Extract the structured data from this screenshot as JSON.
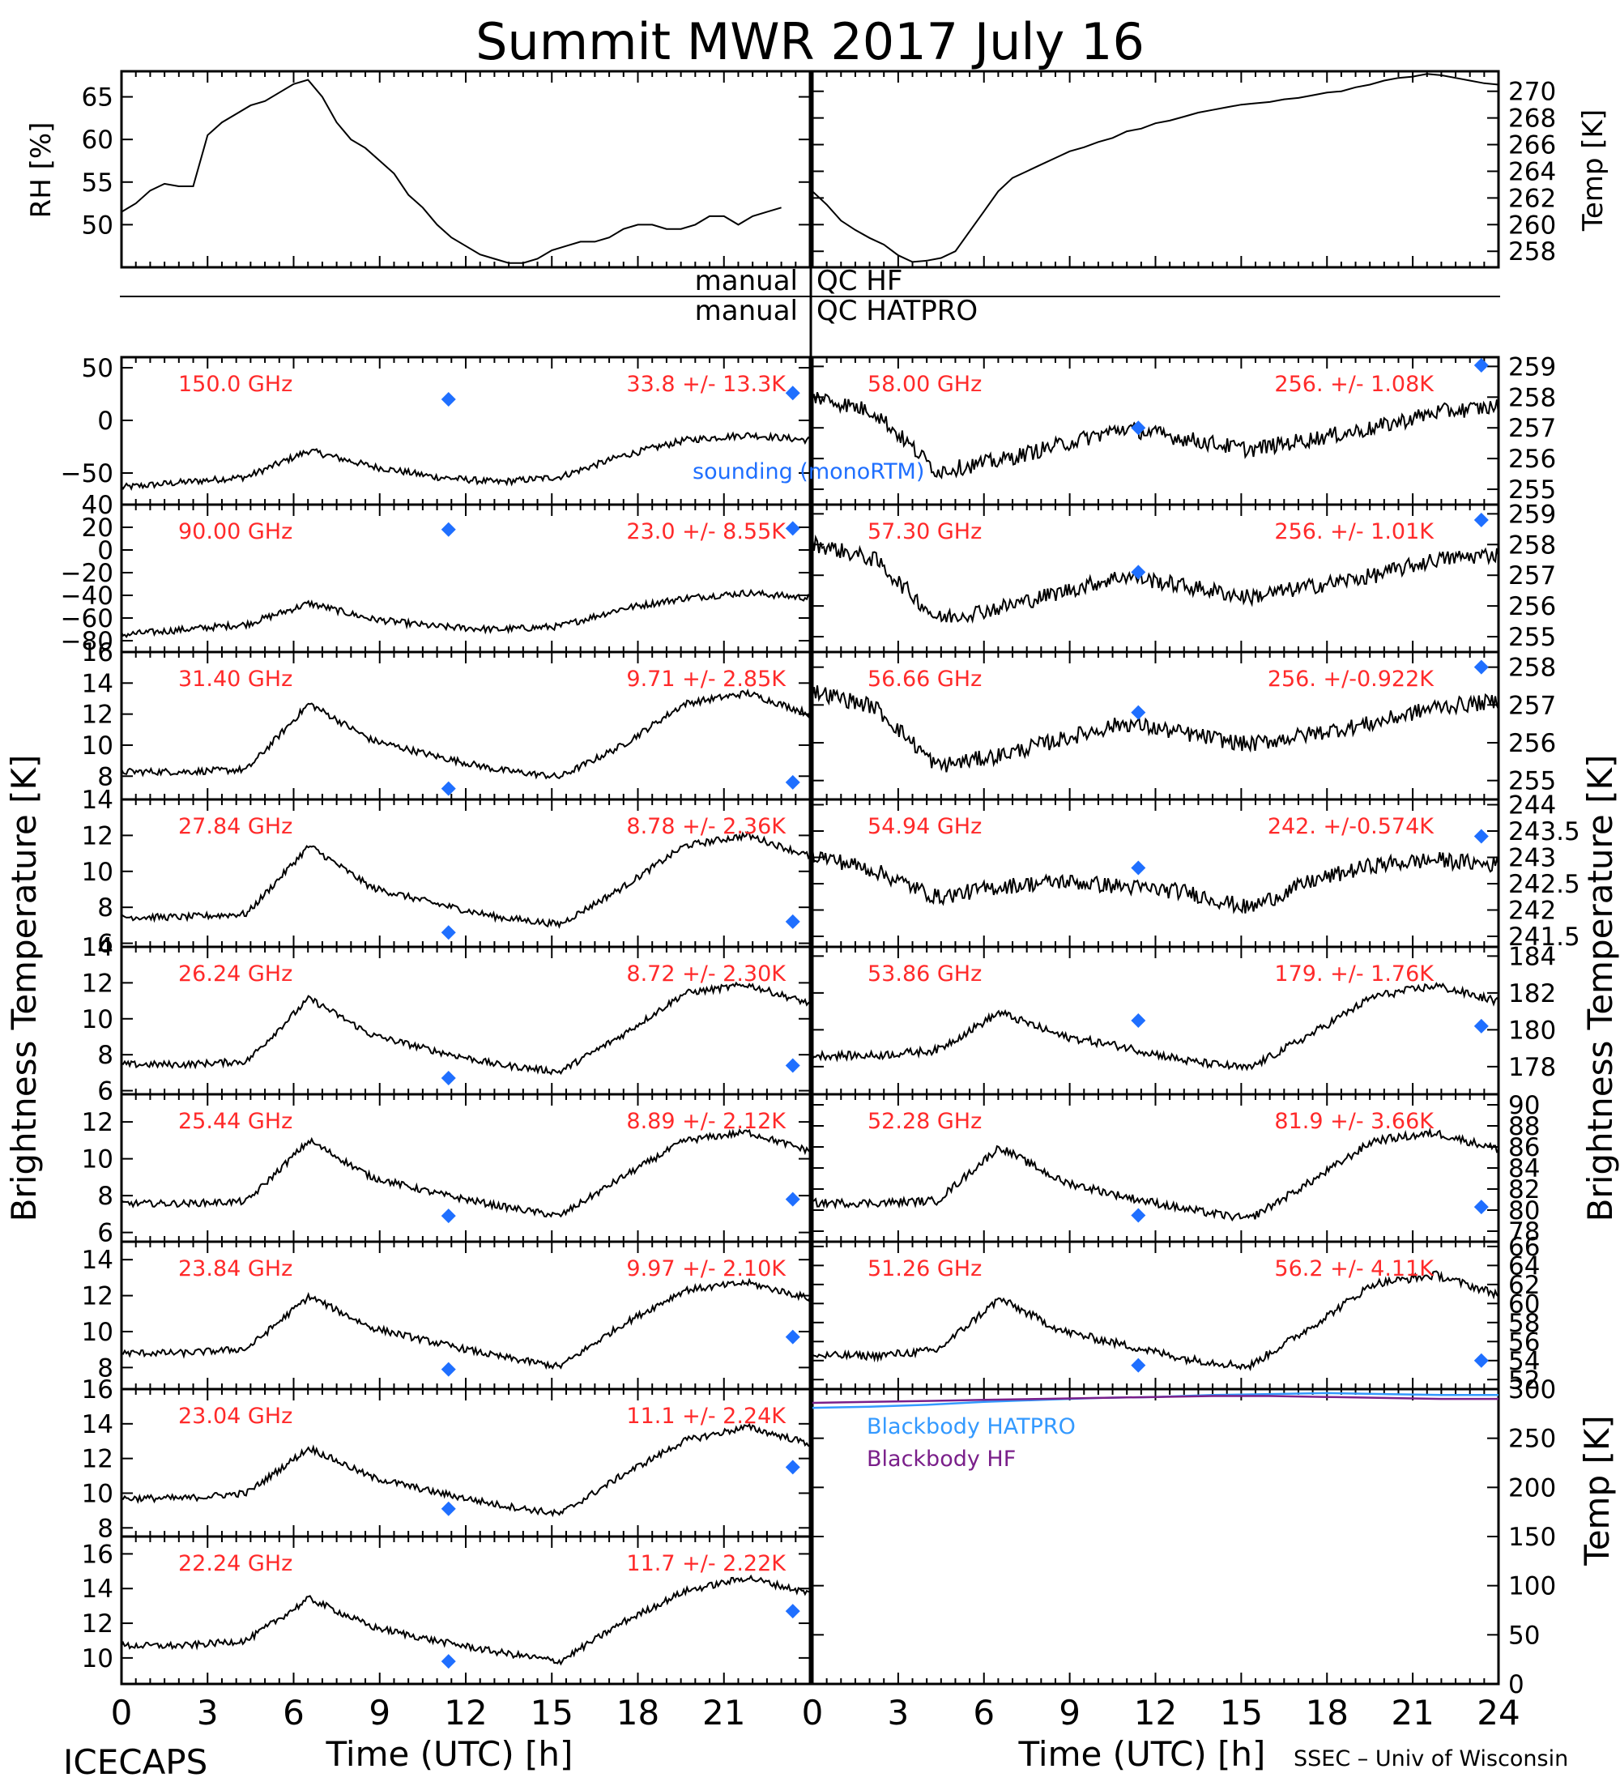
{
  "title": "Summit MWR 2017 July 16",
  "met": {
    "rh_label": "RH [%]",
    "temp_label": "Temp [K]",
    "rh_ticks": [
      50,
      55,
      60,
      65
    ],
    "rh_range": [
      45,
      68
    ],
    "temp_ticks": [
      258,
      260,
      262,
      264,
      266,
      268,
      270
    ],
    "temp_range": [
      256.8,
      271.5
    ],
    "rh_series": {
      "t": [
        0,
        0.5,
        1,
        1.5,
        2,
        2.5,
        3,
        3.5,
        4,
        4.5,
        5,
        5.5,
        6,
        6.5,
        7,
        7.5,
        8,
        8.5,
        9,
        9.5,
        10,
        10.5,
        11,
        11.5,
        12,
        12.5,
        13,
        13.5,
        14,
        14.5,
        15,
        15.5,
        16,
        16.5,
        17,
        17.5,
        18,
        18.5,
        19,
        19.5,
        20,
        20.5,
        21,
        21.5,
        22,
        22.5,
        23
      ],
      "v": [
        51.5,
        52.5,
        54,
        54.8,
        54.5,
        54.5,
        60.5,
        62,
        63,
        64,
        64.5,
        65.5,
        66.5,
        67,
        65,
        62,
        60,
        59,
        57.5,
        56,
        53.5,
        52,
        50,
        48.5,
        47.5,
        46.5,
        46,
        45.5,
        45.5,
        46,
        47,
        47.5,
        48,
        48,
        48.5,
        49.5,
        50,
        50,
        49.5,
        49.5,
        50,
        51,
        51,
        50,
        51,
        51.5,
        52
      ]
    },
    "temp_series": {
      "t": [
        0,
        0.5,
        1,
        1.5,
        2,
        2.5,
        3,
        3.5,
        4,
        4.5,
        5,
        5.5,
        6,
        6.5,
        7,
        7.5,
        8,
        8.5,
        9,
        9.5,
        10,
        10.5,
        11,
        11.5,
        12,
        12.5,
        13,
        13.5,
        14,
        14.5,
        15,
        15.5,
        16,
        16.5,
        17,
        17.5,
        18,
        18.5,
        19,
        19.5,
        20,
        20.5,
        21,
        21.5,
        22,
        22.5,
        23,
        23.5,
        24
      ],
      "v": [
        262.5,
        261.5,
        260.3,
        259.6,
        259,
        258.5,
        257.7,
        257.2,
        257.3,
        257.5,
        258,
        259.5,
        261,
        262.5,
        263.5,
        264,
        264.5,
        265,
        265.5,
        265.8,
        266.2,
        266.5,
        267,
        267.2,
        267.6,
        267.8,
        268.1,
        268.4,
        268.6,
        268.8,
        269,
        269.1,
        269.2,
        269.4,
        269.5,
        269.7,
        269.9,
        270,
        270.3,
        270.5,
        270.8,
        271,
        271.1,
        271.3,
        271.2,
        271,
        270.8,
        270.6,
        270.5
      ]
    }
  },
  "qc": {
    "hf_label": "manual",
    "hf_name": "QC HF",
    "hatpro_label": "manual",
    "hatpro_name": "QC HATPRO"
  },
  "time_ticks": [
    "0",
    "3",
    "6",
    "9",
    "12",
    "15",
    "18",
    "21"
  ],
  "time_ticks_right": [
    "0",
    "3",
    "6",
    "9",
    "12",
    "15",
    "18",
    "21",
    "24"
  ],
  "x_label": "Time (UTC) [h]",
  "y_label": "Brightness Temperature [K]",
  "y_label_right": "Brightness Temperature [K]",
  "footer_left": "ICECAPS",
  "footer_right": "SSEC – Univ of Wisconsin",
  "sounding_label": "sounding (monoRTM)",
  "blackbody": {
    "y_label": "Temp [K]",
    "ticks": [
      0,
      50,
      100,
      150,
      200,
      250,
      300
    ],
    "hatpro_label": "Blackbody HATPRO",
    "hf_label": "Blackbody HF",
    "hatpro_color": "#3399ff",
    "hf_color": "#7a1f8a",
    "hatpro_values": [
      281,
      282,
      284,
      287,
      289,
      291,
      292,
      294,
      295,
      296,
      295,
      294,
      294
    ],
    "hf_values": [
      286,
      287,
      288,
      289,
      290,
      291,
      292,
      293,
      293,
      292,
      291,
      290,
      290
    ]
  },
  "colors": {
    "channel_label": "#ff2a2a",
    "sounding_marker": "#1f6fff",
    "trace": "#000000"
  },
  "chart_data": {
    "type": "line",
    "x_unit": "h UTC",
    "left_channels": [
      {
        "freq": "150.0 GHz",
        "stats": "33.8 +/- 13.3K",
        "ticks": [
          -50,
          0,
          50
        ],
        "ylim": [
          -80,
          60
        ],
        "marker_y": [
          20,
          26
        ],
        "shape": [
          0,
          0.05,
          0.1,
          0.35,
          0.2,
          0.1,
          0.05,
          0.1,
          0.3,
          0.45,
          0.5,
          0.45
        ]
      },
      {
        "freq": "90.00 GHz",
        "stats": "23.0 +/- 8.55K",
        "ticks": [
          -80,
          -60,
          -40,
          -20,
          0,
          20,
          40
        ],
        "ylim": [
          -90,
          40
        ],
        "marker_y": [
          18,
          19
        ],
        "shape": [
          0,
          0.05,
          0.1,
          0.3,
          0.15,
          0.08,
          0.05,
          0.08,
          0.25,
          0.35,
          0.4,
          0.35
        ]
      },
      {
        "freq": "31.40 GHz",
        "stats": "9.71 +/- 2.85K",
        "ticks": [
          8,
          10,
          12,
          14,
          16
        ],
        "ylim": [
          6.5,
          16
        ],
        "marker_y": [
          7.2,
          7.6
        ],
        "shape": [
          0.1,
          0.1,
          0.12,
          0.75,
          0.4,
          0.25,
          0.12,
          0.05,
          0.35,
          0.75,
          0.85,
          0.65
        ]
      },
      {
        "freq": "27.84 GHz",
        "stats": "8.78 +/- 2.36K",
        "ticks": [
          6,
          8,
          10,
          12,
          14
        ],
        "ylim": [
          5.8,
          14
        ],
        "marker_y": [
          6.6,
          7.2
        ],
        "shape": [
          0.12,
          0.12,
          0.15,
          0.8,
          0.4,
          0.25,
          0.12,
          0.05,
          0.4,
          0.8,
          0.9,
          0.7
        ]
      },
      {
        "freq": "26.24 GHz",
        "stats": "8.72 +/- 2.30K",
        "ticks": [
          6,
          8,
          10,
          12,
          14
        ],
        "ylim": [
          5.8,
          14
        ],
        "marker_y": [
          6.7,
          7.4
        ],
        "shape": [
          0.12,
          0.12,
          0.15,
          0.75,
          0.4,
          0.25,
          0.12,
          0.05,
          0.4,
          0.8,
          0.88,
          0.7
        ]
      },
      {
        "freq": "25.44 GHz",
        "stats": "8.89 +/- 2.12K",
        "ticks": [
          6,
          8,
          10,
          12
        ],
        "ylim": [
          5.5,
          13.5
        ],
        "marker_y": [
          6.9,
          7.8
        ],
        "shape": [
          0.2,
          0.2,
          0.22,
          0.8,
          0.45,
          0.3,
          0.18,
          0.08,
          0.45,
          0.8,
          0.88,
          0.7
        ]
      },
      {
        "freq": "23.84 GHz",
        "stats": "9.97 +/- 2.10K",
        "ticks": [
          8,
          10,
          12,
          14
        ],
        "ylim": [
          6.8,
          15
        ],
        "marker_y": [
          7.9,
          9.7
        ],
        "shape": [
          0.18,
          0.18,
          0.22,
          0.72,
          0.42,
          0.28,
          0.15,
          0.05,
          0.45,
          0.78,
          0.85,
          0.7
        ]
      },
      {
        "freq": "23.04 GHz",
        "stats": "11.1 +/- 2.24K",
        "ticks": [
          8,
          10,
          12,
          14,
          16
        ],
        "ylim": [
          7.5,
          16
        ],
        "marker_y": [
          9.1,
          11.5
        ],
        "shape": [
          0.2,
          0.2,
          0.25,
          0.68,
          0.4,
          0.26,
          0.14,
          0.05,
          0.42,
          0.75,
          0.88,
          0.72
        ]
      },
      {
        "freq": "22.24 GHz",
        "stats": "11.7 +/- 2.22K",
        "ticks": [
          10,
          12,
          14,
          16
        ],
        "ylim": [
          8.5,
          17
        ],
        "marker_y": [
          9.8,
          12.7
        ],
        "shape": [
          0.2,
          0.2,
          0.25,
          0.65,
          0.38,
          0.25,
          0.14,
          0.05,
          0.42,
          0.72,
          0.85,
          0.7
        ]
      }
    ],
    "right_channels": [
      {
        "freq": "58.00 GHz",
        "stats": "256. +/- 1.08K",
        "ticks": [
          255,
          256,
          257,
          258,
          259
        ],
        "ylim": [
          254.5,
          259.3
        ],
        "marker_y": [
          257,
          259.1
        ],
        "shape": [
          0.85,
          0.7,
          0.15,
          0.25,
          0.4,
          0.55,
          0.45,
          0.35,
          0.45,
          0.55,
          0.7,
          0.75
        ]
      },
      {
        "freq": "57.30 GHz",
        "stats": "256. +/- 1.01K",
        "ticks": [
          255,
          256,
          257,
          258,
          259
        ],
        "ylim": [
          254.5,
          259.3
        ],
        "marker_y": [
          257.1,
          258.8
        ],
        "shape": [
          0.85,
          0.7,
          0.15,
          0.25,
          0.4,
          0.55,
          0.45,
          0.35,
          0.45,
          0.55,
          0.7,
          0.75
        ]
      },
      {
        "freq": "56.66 GHz",
        "stats": "256. +/-0.922K",
        "ticks": [
          255,
          256,
          257,
          258
        ],
        "ylim": [
          254.5,
          258.4
        ],
        "marker_y": [
          256.8,
          258
        ],
        "shape": [
          0.85,
          0.7,
          0.15,
          0.25,
          0.4,
          0.55,
          0.45,
          0.35,
          0.45,
          0.55,
          0.7,
          0.75
        ]
      },
      {
        "freq": "54.94 GHz",
        "stats": "242. +/-0.574K",
        "ticks": [
          241.5,
          242.0,
          242.5,
          243.0,
          243.5,
          244.0
        ],
        "ylim": [
          241.3,
          244.1
        ],
        "marker_y": [
          242.8,
          243.4
        ],
        "shape": [
          0.7,
          0.55,
          0.3,
          0.4,
          0.45,
          0.4,
          0.35,
          0.2,
          0.45,
          0.6,
          0.65,
          0.6
        ]
      },
      {
        "freq": "53.86 GHz",
        "stats": "179. +/- 1.76K",
        "ticks": [
          178,
          180,
          182,
          184
        ],
        "ylim": [
          176.5,
          184.5
        ],
        "marker_y": [
          180.5,
          180.2
        ],
        "shape": [
          0.2,
          0.2,
          0.25,
          0.6,
          0.38,
          0.28,
          0.15,
          0.08,
          0.4,
          0.75,
          0.85,
          0.7
        ]
      },
      {
        "freq": "52.28 GHz",
        "stats": "81.9 +/- 3.66K",
        "ticks": [
          78,
          80,
          82,
          84,
          86,
          88,
          90
        ],
        "ylim": [
          77,
          91
        ],
        "marker_y": [
          79.5,
          80.3
        ],
        "shape": [
          0.2,
          0.2,
          0.22,
          0.72,
          0.4,
          0.26,
          0.14,
          0.05,
          0.4,
          0.78,
          0.85,
          0.7
        ]
      },
      {
        "freq": "51.26 GHz",
        "stats": "56.2 +/- 4.11K",
        "ticks": [
          52,
          54,
          56,
          58,
          60,
          62,
          64,
          66
        ],
        "ylim": [
          51,
          66.5
        ],
        "marker_y": [
          53.5,
          54
        ],
        "shape": [
          0.15,
          0.15,
          0.2,
          0.68,
          0.38,
          0.25,
          0.12,
          0.05,
          0.42,
          0.82,
          0.9,
          0.72
        ]
      }
    ],
    "marker_times": [
      11.4,
      23.4
    ]
  }
}
